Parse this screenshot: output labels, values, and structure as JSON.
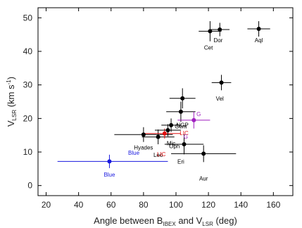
{
  "chart_data": {
    "type": "scatter",
    "title": "",
    "xlabel": {
      "main": "Angle between B",
      "sub1": "IBEX",
      "mid": " and V",
      "sub2": "LSR",
      "tail": " (deg)"
    },
    "ylabel": {
      "main": "V",
      "sub": "LSR",
      "tail": " (km s",
      "sup": "-1",
      "end": ")"
    },
    "xlim": [
      15,
      172
    ],
    "ylim": [
      -3,
      53
    ],
    "xticks": [
      20,
      40,
      60,
      80,
      100,
      120,
      140,
      160
    ],
    "yticks": [
      0,
      10,
      20,
      30,
      40,
      50
    ],
    "grid": false,
    "legend": "none",
    "colors": {
      "default": "#000000",
      "blue": "#1a1adf",
      "red": "#e01010",
      "purple": "#a020c0"
    },
    "points": [
      {
        "name": "Blue",
        "x": 59,
        "y": 7.2,
        "xerr": [
          32,
          36
        ],
        "yerr": [
          2,
          2
        ],
        "color": "#1a1adf",
        "labels": [
          {
            "text": "Blue",
            "dx": 0,
            "dy": 4.5,
            "anchor": "middle"
          },
          {
            "text": "Blue",
            "dx": 15,
            "dy": -2,
            "anchor": "middle"
          }
        ]
      },
      {
        "name": "Hyades",
        "x": 80,
        "y": 15.2,
        "xerr": [
          18,
          18
        ],
        "yerr": [
          2.2,
          2.2
        ],
        "color": "#000000",
        "labels": [
          {
            "text": "Hyades",
            "dx": 0,
            "dy": 4.5,
            "anchor": "middle"
          }
        ]
      },
      {
        "name": "Leo",
        "x": 89,
        "y": 14.5,
        "xerr": [
          10,
          10
        ],
        "yerr": [
          2.2,
          2.2
        ],
        "color": "#000000",
        "labels": [
          {
            "text": "Leo",
            "dx": 0,
            "dy": 6,
            "anchor": "middle"
          }
        ]
      },
      {
        "name": "LIC",
        "x": 93,
        "y": 15.5,
        "xerr": [
          12,
          10
        ],
        "yerr": [
          1.5,
          1.5
        ],
        "color": "#e01010",
        "labels": [
          {
            "text": "LIC",
            "dx": -2,
            "dy": 6.8,
            "anchor": "middle"
          },
          {
            "text": "LIC",
            "dx": 12,
            "dy": 0.5,
            "anchor": "middle"
          }
        ]
      },
      {
        "name": "Mic",
        "x": 95,
        "y": 16.5,
        "xerr": [
          8,
          8
        ],
        "yerr": [
          1.8,
          1.8
        ],
        "color": "#000000",
        "labels": [
          {
            "text": "Mic",
            "dx": 2,
            "dy": 4.5,
            "anchor": "middle"
          }
        ]
      },
      {
        "name": "Oph",
        "x": 97,
        "y": 18,
        "xerr": [
          6,
          6
        ],
        "yerr": [
          2,
          2
        ],
        "color": "#000000",
        "labels": [
          {
            "text": "Oph",
            "dx": 2,
            "dy": 6.8,
            "anchor": "middle"
          }
        ]
      },
      {
        "name": "Gem",
        "x": 103,
        "y": 22,
        "xerr": [
          9,
          9
        ],
        "yerr": [
          3,
          3
        ],
        "color": "#000000",
        "labels": [
          {
            "text": "Gem",
            "dx": 0,
            "dy": 5,
            "anchor": "middle"
          }
        ]
      },
      {
        "name": "NGP",
        "x": 104,
        "y": 26,
        "xerr": [
          8,
          8
        ],
        "yerr": [
          3,
          3
        ],
        "color": "#000000",
        "labels": [
          {
            "text": "NGP",
            "dx": 0,
            "dy": 8.5,
            "anchor": "middle"
          }
        ]
      },
      {
        "name": "Eri",
        "x": 105,
        "y": 12.3,
        "xerr": [
          12,
          12
        ],
        "yerr": [
          3,
          3
        ],
        "color": "#000000",
        "labels": [
          {
            "text": "Eri",
            "dx": -2,
            "dy": 5.8,
            "anchor": "middle"
          }
        ]
      },
      {
        "name": "G",
        "x": 111,
        "y": 19.5,
        "xerr": [
          10,
          10
        ],
        "yerr": [
          2.5,
          2.5
        ],
        "color": "#a020c0",
        "labels": [
          {
            "text": "G",
            "dx": 3,
            "dy": -1.2,
            "anchor": "middle"
          },
          {
            "text": "G",
            "dx": -5,
            "dy": 5.5,
            "anchor": "middle"
          }
        ]
      },
      {
        "name": "Aur",
        "x": 117,
        "y": 9.5,
        "xerr": [
          20,
          20
        ],
        "yerr": [
          2.5,
          2.5
        ],
        "color": "#000000",
        "labels": [
          {
            "text": "Aur",
            "dx": 0,
            "dy": 8,
            "anchor": "middle"
          }
        ]
      },
      {
        "name": "Cet",
        "x": 121,
        "y": 46,
        "xerr": [
          7,
          7
        ],
        "yerr": [
          3,
          3
        ],
        "color": "#000000",
        "labels": [
          {
            "text": "Cet",
            "dx": -1,
            "dy": 5.5,
            "anchor": "middle"
          }
        ]
      },
      {
        "name": "Dor",
        "x": 127,
        "y": 46.5,
        "xerr": [
          6,
          6
        ],
        "yerr": [
          2,
          2
        ],
        "color": "#000000",
        "labels": [
          {
            "text": "Dor",
            "dx": -1,
            "dy": 3.8,
            "anchor": "middle"
          }
        ]
      },
      {
        "name": "Vel",
        "x": 128,
        "y": 30.7,
        "xerr": [
          6,
          6
        ],
        "yerr": [
          2.3,
          2.3
        ],
        "color": "#000000",
        "labels": [
          {
            "text": "Vel",
            "dx": -1,
            "dy": 5.4,
            "anchor": "middle"
          }
        ]
      },
      {
        "name": "Aql",
        "x": 151,
        "y": 46.7,
        "xerr": [
          7,
          7
        ],
        "yerr": [
          2.3,
          2.3
        ],
        "color": "#000000",
        "labels": [
          {
            "text": "Aql",
            "dx": 0,
            "dy": 4,
            "anchor": "middle"
          }
        ]
      }
    ]
  }
}
